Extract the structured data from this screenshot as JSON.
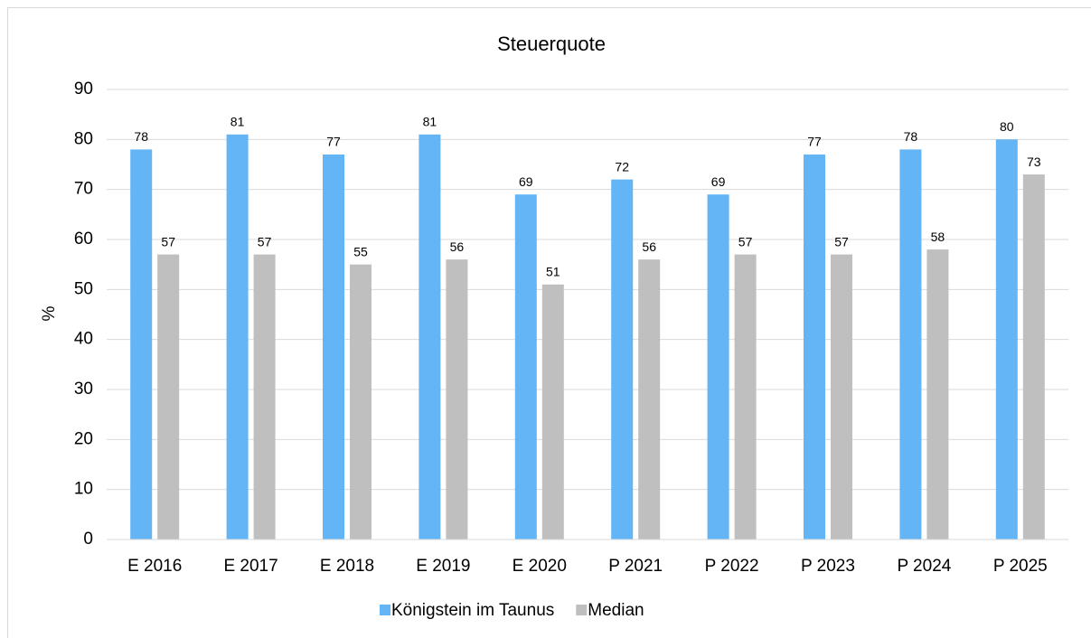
{
  "chart_data": {
    "type": "bar",
    "title": "Steuerquote",
    "y_label": "%",
    "categories": [
      "E 2016",
      "E 2017",
      "E 2018",
      "E 2019",
      "E 2020",
      "P 2021",
      "P 2022",
      "P 2023",
      "P 2024",
      "P 2025"
    ],
    "series": [
      {
        "name": "Königstein im Taunus",
        "color": "#64b5f6",
        "values": [
          78,
          81,
          77,
          81,
          69,
          72,
          69,
          77,
          78,
          80
        ]
      },
      {
        "name": "Median",
        "color": "#bfbfbf",
        "values": [
          57,
          57,
          55,
          56,
          51,
          56,
          57,
          57,
          58,
          73
        ]
      }
    ],
    "ylim": [
      0,
      90
    ],
    "yticks": [
      0,
      10,
      20,
      30,
      40,
      50,
      60,
      70,
      80,
      90
    ],
    "grid": true,
    "legend": "bottom"
  }
}
